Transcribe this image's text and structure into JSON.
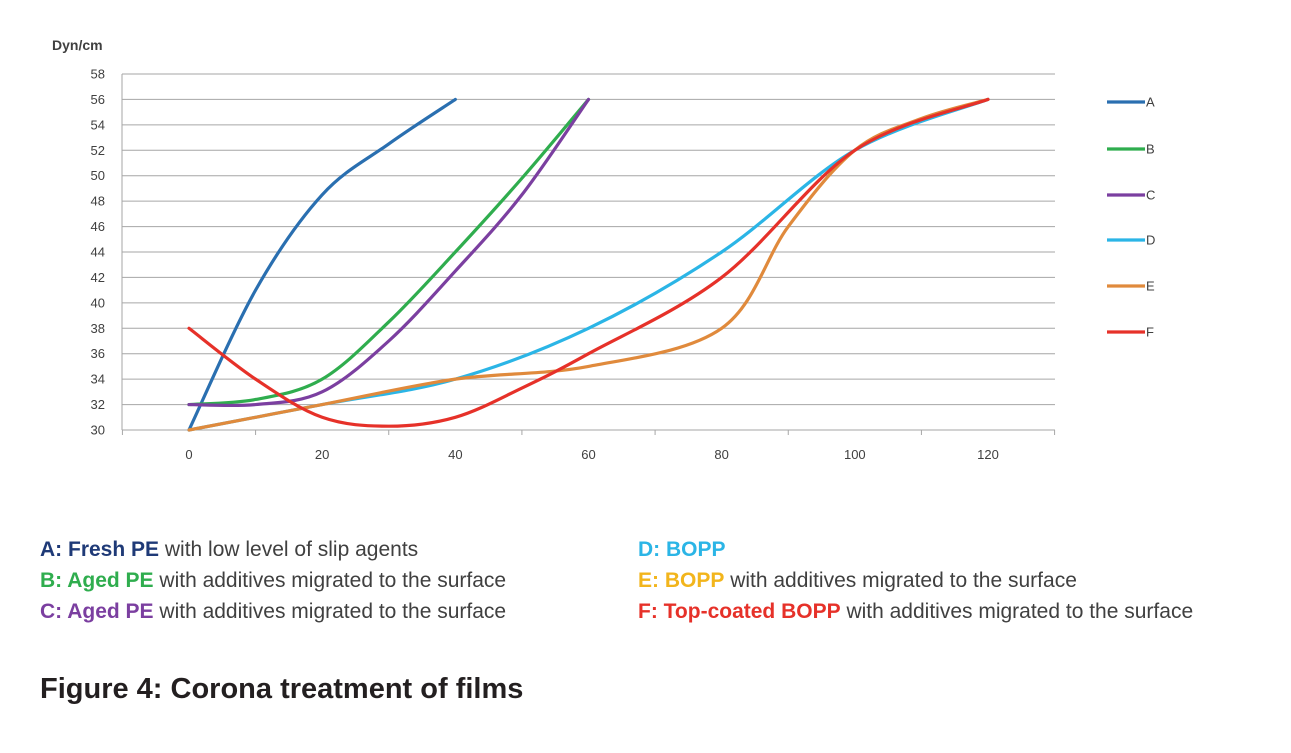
{
  "chart_data": {
    "type": "line",
    "title": "",
    "xlabel": "",
    "ylabel": "Dyn/cm",
    "xlim": [
      -10,
      130
    ],
    "ylim": [
      30,
      58
    ],
    "x_ticks": [
      0,
      20,
      40,
      60,
      80,
      100,
      120
    ],
    "y_ticks": [
      30,
      32,
      34,
      36,
      38,
      40,
      42,
      44,
      46,
      48,
      50,
      52,
      54,
      56,
      58
    ],
    "grid": "horizontal",
    "legend_position": "right",
    "series": [
      {
        "name": "A",
        "color": "#2a6fb0",
        "x": [
          0,
          10,
          20,
          30,
          40
        ],
        "y": [
          30,
          41,
          48.5,
          52.5,
          56
        ]
      },
      {
        "name": "B",
        "color": "#2fad4e",
        "x": [
          0,
          10,
          20,
          30,
          40,
          50,
          60
        ],
        "y": [
          32,
          32.4,
          34,
          38.5,
          44,
          49.8,
          56
        ]
      },
      {
        "name": "C",
        "color": "#7b3fa0",
        "x": [
          0,
          10,
          20,
          30,
          40,
          50,
          60
        ],
        "y": [
          32,
          32,
          33,
          37,
          42.5,
          48.5,
          56
        ]
      },
      {
        "name": "D",
        "color": "#2bb5e6",
        "x": [
          0,
          20,
          40,
          60,
          80,
          100,
          120
        ],
        "y": [
          30,
          32,
          34,
          38,
          44,
          52,
          56
        ]
      },
      {
        "name": "E",
        "color": "#e08a3c",
        "x": [
          0,
          20,
          40,
          60,
          80,
          90,
          100,
          110,
          120
        ],
        "y": [
          30,
          32,
          34,
          35,
          38,
          46,
          52,
          54.5,
          56
        ]
      },
      {
        "name": "F",
        "color": "#e63129",
        "x": [
          0,
          10,
          20,
          30,
          40,
          50,
          60,
          80,
          100,
          120
        ],
        "y": [
          38,
          34,
          31,
          30.3,
          31,
          33.3,
          36,
          42,
          52,
          56
        ]
      }
    ]
  },
  "captions": {
    "a": {
      "bold": "A: Fresh PE",
      "rest": " with low level of slip agents",
      "color": "#1f3a77"
    },
    "b": {
      "bold": "B: Aged PE",
      "rest": " with additives migrated to the surface",
      "color": "#2fad4e"
    },
    "c": {
      "bold": "C: Aged PE",
      "rest": " with additives migrated to the surface",
      "color": "#7b3fa0"
    },
    "d": {
      "bold": "D: BOPP",
      "rest": "",
      "color": "#2bb5e6"
    },
    "e": {
      "bold": "E: BOPP",
      "rest": " with additives migrated to the surface",
      "color": "#f2b51c"
    },
    "f": {
      "bold": "F: Top-coated BOPP",
      "rest": " with additives migrated to the surface",
      "color": "#e63129"
    }
  },
  "figure_title": "Figure 4: Corona treatment of films",
  "colors": {
    "grid": "#a6a6a6",
    "axis_text": "#404040",
    "caption_text": "#404040"
  }
}
